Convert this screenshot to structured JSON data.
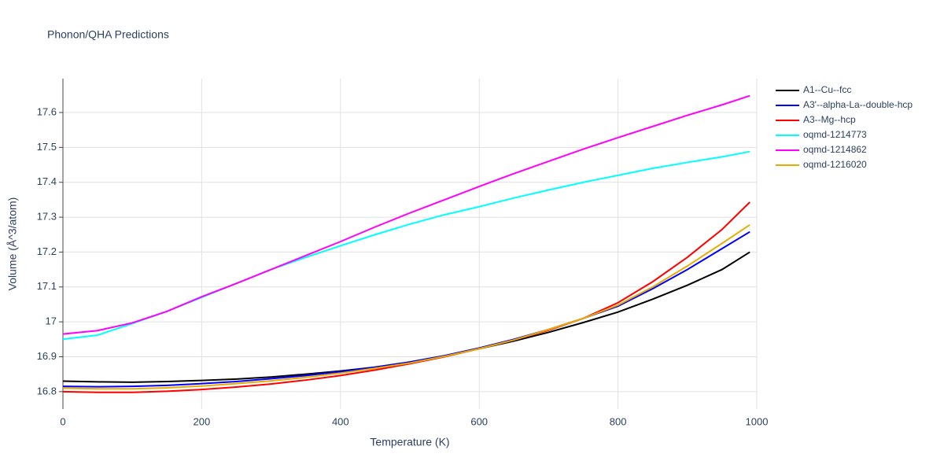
{
  "chart_data": {
    "type": "line",
    "title": "Phonon/QHA Predictions",
    "x_label": "Temperature (K)",
    "y_label": "Volume (Å^3/atom)",
    "x": [
      0,
      50,
      100,
      150,
      200,
      250,
      300,
      350,
      400,
      450,
      500,
      550,
      600,
      650,
      700,
      750,
      800,
      850,
      900,
      950,
      990
    ],
    "series": [
      {
        "name": "A1--Cu--fcc",
        "color": "#000000",
        "values": [
          16.83,
          16.828,
          16.827,
          16.829,
          16.832,
          16.836,
          16.842,
          16.85,
          16.859,
          16.87,
          16.884,
          16.902,
          16.923,
          16.945,
          16.97,
          16.998,
          17.028,
          17.065,
          17.105,
          17.15,
          17.2
        ]
      },
      {
        "name": "A3'--alpha-La--double-hcp",
        "color": "#0000ff",
        "values": [
          16.815,
          16.814,
          16.815,
          16.818,
          16.823,
          16.829,
          16.837,
          16.846,
          16.857,
          16.87,
          16.885,
          16.903,
          16.925,
          16.95,
          16.978,
          17.01,
          17.045,
          17.095,
          17.15,
          17.21,
          17.258
        ]
      },
      {
        "name": "A3--Mg--hcp",
        "color": "#ff0000",
        "values": [
          16.8,
          16.798,
          16.798,
          16.801,
          16.806,
          16.813,
          16.822,
          16.833,
          16.846,
          16.862,
          16.88,
          16.9,
          16.923,
          16.948,
          16.976,
          17.01,
          17.055,
          17.115,
          17.185,
          17.265,
          17.343
        ]
      },
      {
        "name": "oqmd-1214773",
        "color": "#00ffff",
        "values": [
          16.95,
          16.962,
          16.995,
          17.03,
          17.07,
          17.11,
          17.15,
          17.185,
          17.218,
          17.25,
          17.28,
          17.307,
          17.33,
          17.355,
          17.378,
          17.4,
          17.42,
          17.44,
          17.457,
          17.473,
          17.488
        ]
      },
      {
        "name": "oqmd-1214862",
        "color": "#ff00ff",
        "values": [
          16.965,
          16.975,
          16.997,
          17.03,
          17.072,
          17.11,
          17.15,
          17.19,
          17.23,
          17.272,
          17.312,
          17.35,
          17.388,
          17.425,
          17.46,
          17.495,
          17.528,
          17.56,
          17.592,
          17.622,
          17.648
        ]
      },
      {
        "name": "oqmd-1216020",
        "color": "#e6ac00",
        "values": [
          16.81,
          16.808,
          16.808,
          16.811,
          16.816,
          16.823,
          16.831,
          16.841,
          16.853,
          16.867,
          16.882,
          16.901,
          16.923,
          16.948,
          16.978,
          17.01,
          17.048,
          17.1,
          17.16,
          17.225,
          17.278
        ]
      }
    ],
    "xlim": [
      0,
      1000
    ],
    "xticks": [
      0,
      200,
      400,
      600,
      800,
      1000
    ],
    "ylim": [
      16.75,
      17.697
    ],
    "yticks": [
      16.8,
      16.9,
      17,
      17.1,
      17.2,
      17.3,
      17.4,
      17.5,
      17.6
    ],
    "grid": true,
    "legend": "top-right"
  }
}
